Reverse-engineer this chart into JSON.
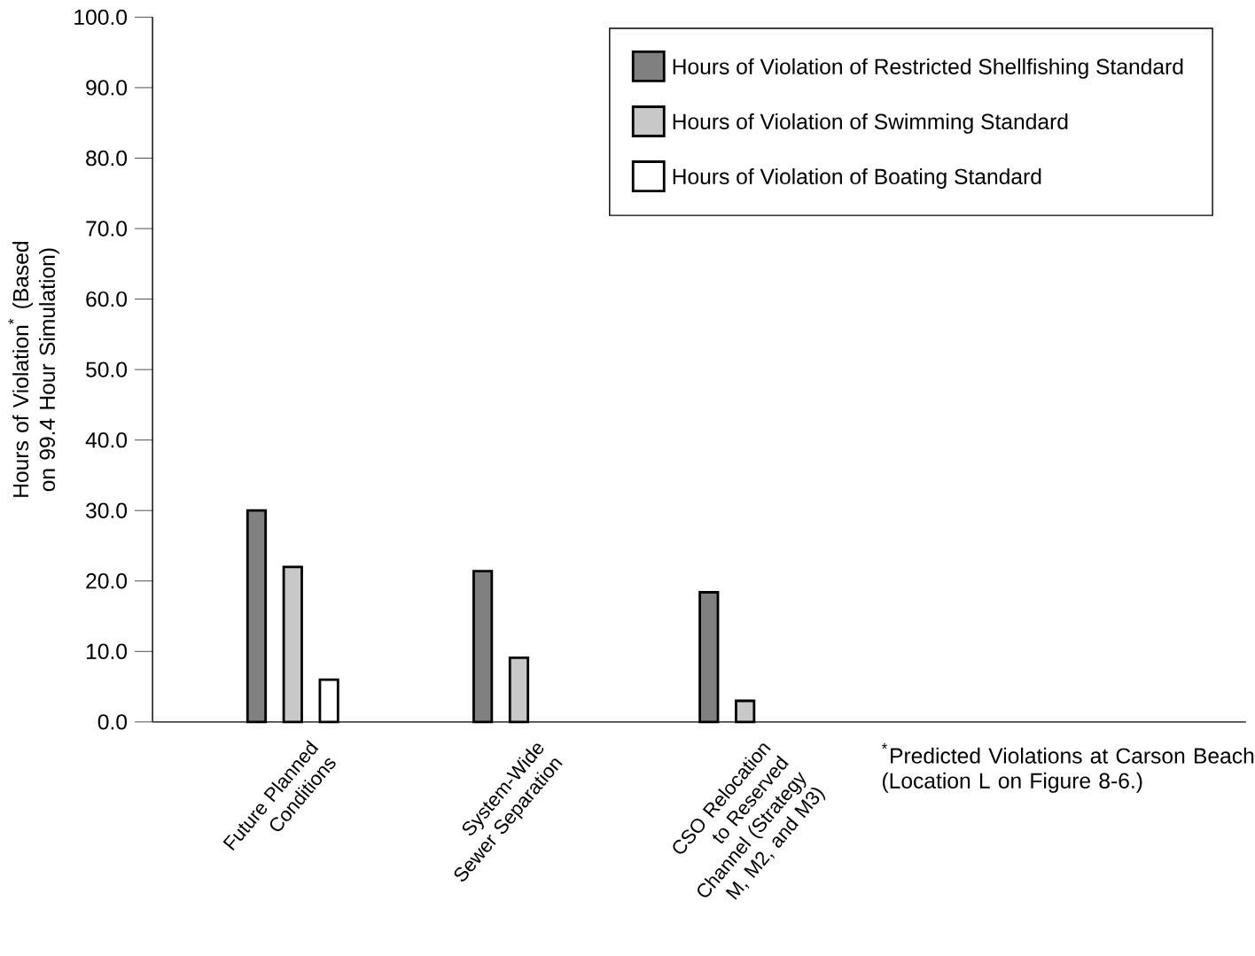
{
  "chart_data": {
    "type": "bar",
    "ylabel": "Hours of Violation$^{*}$ (Based on 99.4 Hour Simulation)",
    "categories": [
      "Future Planned Conditions",
      "System-Wide Sewer Separation",
      "CSO Relocation to Reserved Channel (Strategy M, M2, and M3)"
    ],
    "series": [
      {
        "name": "Hours of Violation of Restricted Shellfishing Standard",
        "color": "#808080",
        "values": [
          30.0,
          21.4,
          18.4
        ]
      },
      {
        "name": "Hours of Violation of Swimming Standard",
        "color": "#c8c8c8",
        "values": [
          22.0,
          9.1,
          3.0
        ]
      },
      {
        "name": "Hours of Violation of Boating Standard",
        "color": "#ffffff",
        "values": [
          6.0,
          null,
          null
        ]
      }
    ],
    "ylim": [
      0,
      100
    ],
    "yticks": [
      {
        "value": 0,
        "label": "0.0"
      },
      {
        "value": 10,
        "label": "10.0"
      },
      {
        "value": 20,
        "label": "20.0"
      },
      {
        "value": 30,
        "label": "30.0"
      },
      {
        "value": 40,
        "label": "40.0"
      },
      {
        "value": 50,
        "label": "50.0"
      },
      {
        "value": 60,
        "label": "60.0"
      },
      {
        "value": 70,
        "label": "70.0"
      },
      {
        "value": 80,
        "label": "80.0"
      },
      {
        "value": 90,
        "label": "90.0"
      },
      {
        "value": 100,
        "label": "100.0"
      }
    ],
    "grid": false,
    "legend": "top right",
    "annotations": [
      "$^{*}$Predicted Violations at Carson Beach (Location L on Figure 8-6.)"
    ]
  }
}
